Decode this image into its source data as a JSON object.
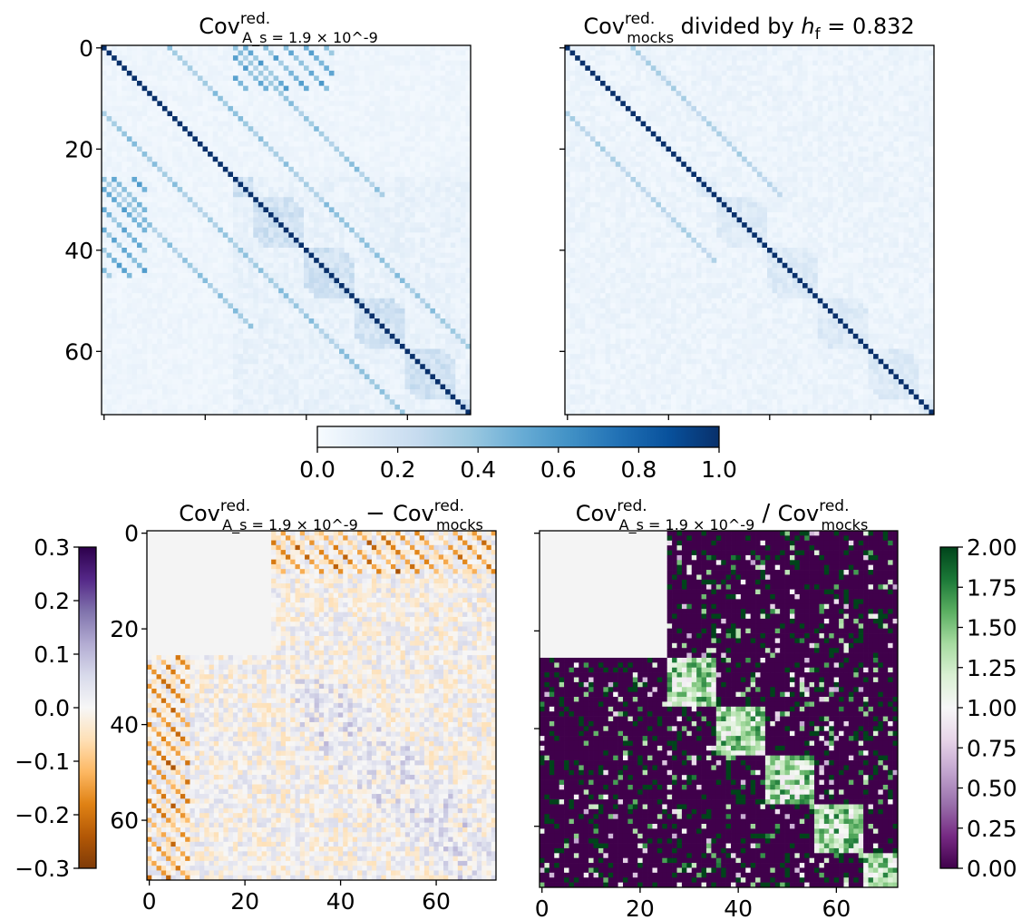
{
  "chart_data": [
    {
      "type": "heatmap",
      "panel": "top-left",
      "title": {
        "base": "Cov",
        "sup": "red.",
        "sub": "A_s = 1.9 × 10^-9"
      },
      "matrix_size": 73,
      "y_ticks": [
        "0",
        "20",
        "40",
        "60"
      ],
      "x_ticks_labeled": false,
      "colormap": "Blues",
      "vmin": 0.0,
      "vmax": 1.0,
      "diagonal_value": 1.0
    },
    {
      "type": "heatmap",
      "panel": "top-right",
      "title": {
        "base": "Cov",
        "sup": "red.",
        "sub": "mocks",
        "tail": " divided by ",
        "var": "h",
        "var_sub": "f",
        "value": " = 0.832"
      },
      "matrix_size": 73,
      "y_ticks_labeled": false,
      "x_ticks_labeled": false,
      "colormap": "Blues",
      "vmin": 0.0,
      "vmax": 1.0,
      "diagonal_value": 1.0
    },
    {
      "type": "colorbar",
      "panel": "top-shared",
      "orientation": "horizontal",
      "colormap": "Blues",
      "ticks": [
        "0.0",
        "0.2",
        "0.4",
        "0.6",
        "0.8",
        "1.0"
      ],
      "range": [
        0.0,
        1.0
      ]
    },
    {
      "type": "heatmap",
      "panel": "bottom-left",
      "title": {
        "a_base": "Cov",
        "a_sup": "red.",
        "a_sub": "A_s = 1.9 × 10^-9",
        "op": " − ",
        "b_base": "Cov",
        "b_sup": "red.",
        "b_sub": "mocks"
      },
      "matrix_size": 73,
      "masked_block": [
        0,
        25
      ],
      "x_ticks": [
        "0",
        "20",
        "40",
        "60"
      ],
      "y_ticks": [
        "0",
        "20",
        "40",
        "60"
      ],
      "colormap": "PuOr",
      "vmin": -0.3,
      "vmax": 0.3,
      "colorbar_ticks": [
        "0.3",
        "0.2",
        "0.1",
        "0.0",
        "−0.1",
        "−0.2",
        "−0.3"
      ],
      "colorbar_position": "left"
    },
    {
      "type": "heatmap",
      "panel": "bottom-right",
      "title": {
        "a_base": "Cov",
        "a_sup": "red.",
        "a_sub": "A_s = 1.9 × 10^-9",
        "op": " / ",
        "b_base": "Cov",
        "b_sup": "red.",
        "b_sub": "mocks"
      },
      "matrix_size": 73,
      "masked_block": [
        0,
        25
      ],
      "x_ticks": [
        "0",
        "20",
        "40",
        "60"
      ],
      "y_ticks_labeled": false,
      "colormap": "PRGn",
      "vmin": 0.0,
      "vmax": 2.0,
      "colorbar_ticks": [
        "2.00",
        "1.75",
        "1.50",
        "1.25",
        "1.00",
        "0.75",
        "0.50",
        "0.25",
        "0.00"
      ],
      "colorbar_position": "right"
    }
  ]
}
